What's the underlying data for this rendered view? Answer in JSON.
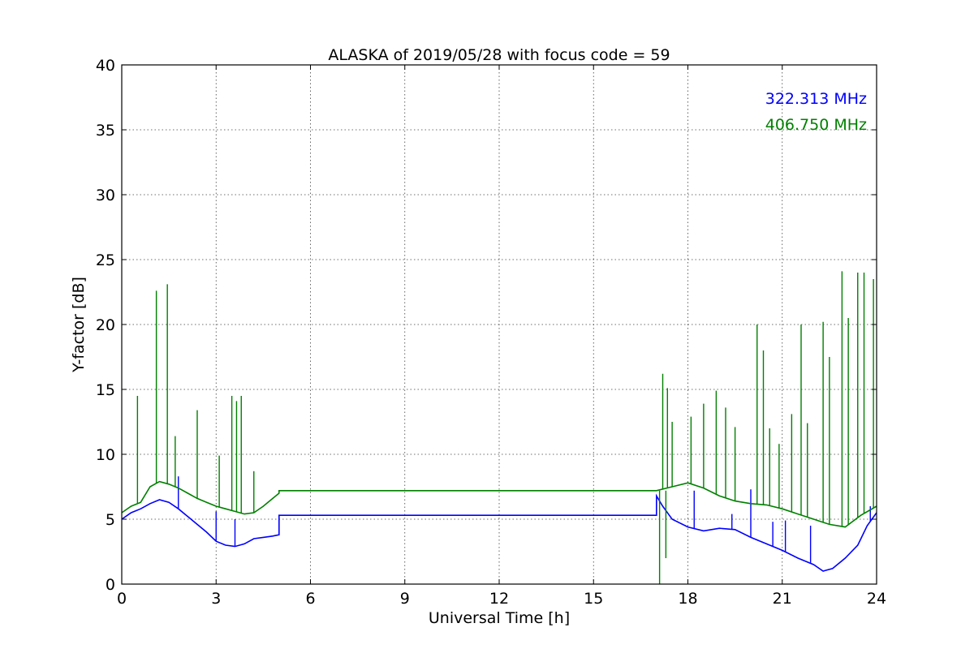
{
  "chart_data": {
    "type": "line",
    "title": "ALASKA of 2019/05/28 with focus code = 59",
    "xlabel": "Universal Time [h]",
    "ylabel": "Y-factor [dB]",
    "xlim": [
      0,
      24
    ],
    "ylim": [
      0,
      40
    ],
    "xticks": [
      0,
      3,
      6,
      9,
      12,
      15,
      18,
      21,
      24
    ],
    "yticks": [
      0,
      5,
      10,
      15,
      20,
      25,
      30,
      35,
      40
    ],
    "grid": true,
    "legend_placement": "top-right",
    "series": [
      {
        "name": "322.313 MHz",
        "color": "#0000ff",
        "x": [
          0,
          0.3,
          0.6,
          0.9,
          1.2,
          1.5,
          1.8,
          2.1,
          2.4,
          2.7,
          3.0,
          3.3,
          3.6,
          3.9,
          4.2,
          4.5,
          4.8,
          5.0,
          5.0,
          17.0,
          17.0,
          17.2,
          17.5,
          18.0,
          18.5,
          19.0,
          19.5,
          20.0,
          20.5,
          21.0,
          21.5,
          22.0,
          22.3,
          22.6,
          23.0,
          23.4,
          23.7,
          24.0
        ],
        "y": [
          5.0,
          5.5,
          5.8,
          6.2,
          6.5,
          6.3,
          5.8,
          5.2,
          4.6,
          4.0,
          3.3,
          3.0,
          2.9,
          3.1,
          3.5,
          3.6,
          3.7,
          3.8,
          5.3,
          5.3,
          6.8,
          6.0,
          5.0,
          4.4,
          4.1,
          4.3,
          4.2,
          3.6,
          3.1,
          2.6,
          2.0,
          1.5,
          1.0,
          1.2,
          2.0,
          3.0,
          4.5,
          5.5
        ],
        "spikes": [
          [
            1.8,
            8.3
          ],
          [
            3.0,
            5.6
          ],
          [
            3.6,
            5.0
          ],
          [
            18.2,
            7.2
          ],
          [
            19.4,
            5.4
          ],
          [
            20.0,
            7.3
          ],
          [
            20.7,
            4.8
          ],
          [
            21.1,
            4.9
          ],
          [
            21.9,
            4.5
          ],
          [
            23.8,
            6.0
          ]
        ]
      },
      {
        "name": "406.750 MHz",
        "color": "#008000",
        "x": [
          0,
          0.3,
          0.6,
          0.9,
          1.2,
          1.5,
          1.8,
          2.1,
          2.4,
          2.7,
          3.0,
          3.3,
          3.6,
          3.9,
          4.2,
          4.5,
          4.8,
          5.0,
          5.0,
          17.0,
          17.0,
          17.5,
          18.0,
          18.5,
          19.0,
          19.5,
          20.0,
          20.5,
          21.0,
          21.5,
          22.0,
          22.5,
          23.0,
          23.5,
          24.0
        ],
        "y": [
          5.5,
          6.0,
          6.3,
          7.5,
          7.9,
          7.7,
          7.4,
          7.0,
          6.6,
          6.3,
          6.0,
          5.8,
          5.6,
          5.4,
          5.5,
          6.0,
          6.6,
          7.0,
          7.2,
          7.2,
          7.2,
          7.5,
          7.8,
          7.4,
          6.8,
          6.4,
          6.2,
          6.1,
          5.8,
          5.4,
          5.0,
          4.6,
          4.4,
          5.3,
          6.0
        ],
        "spikes": [
          [
            0.5,
            14.5
          ],
          [
            1.1,
            22.6
          ],
          [
            1.45,
            23.1
          ],
          [
            1.7,
            11.4
          ],
          [
            2.4,
            13.4
          ],
          [
            3.1,
            9.9
          ],
          [
            3.5,
            14.5
          ],
          [
            3.65,
            14.1
          ],
          [
            3.8,
            14.5
          ],
          [
            4.2,
            8.7
          ],
          [
            17.2,
            16.2
          ],
          [
            17.35,
            15.1
          ],
          [
            17.5,
            12.5
          ],
          [
            18.1,
            12.9
          ],
          [
            18.5,
            13.9
          ],
          [
            18.9,
            14.9
          ],
          [
            19.2,
            13.6
          ],
          [
            19.5,
            12.1
          ],
          [
            20.2,
            20.0
          ],
          [
            20.4,
            18.0
          ],
          [
            20.6,
            12.0
          ],
          [
            20.9,
            10.8
          ],
          [
            21.3,
            13.1
          ],
          [
            21.6,
            20.0
          ],
          [
            21.8,
            12.4
          ],
          [
            22.3,
            20.2
          ],
          [
            22.5,
            17.5
          ],
          [
            22.9,
            24.1
          ],
          [
            23.1,
            20.5
          ],
          [
            23.4,
            24.0
          ],
          [
            23.6,
            24.0
          ],
          [
            23.9,
            23.5
          ]
        ],
        "dips": [
          [
            17.1,
            0.0
          ],
          [
            17.3,
            2.0
          ]
        ]
      }
    ]
  }
}
